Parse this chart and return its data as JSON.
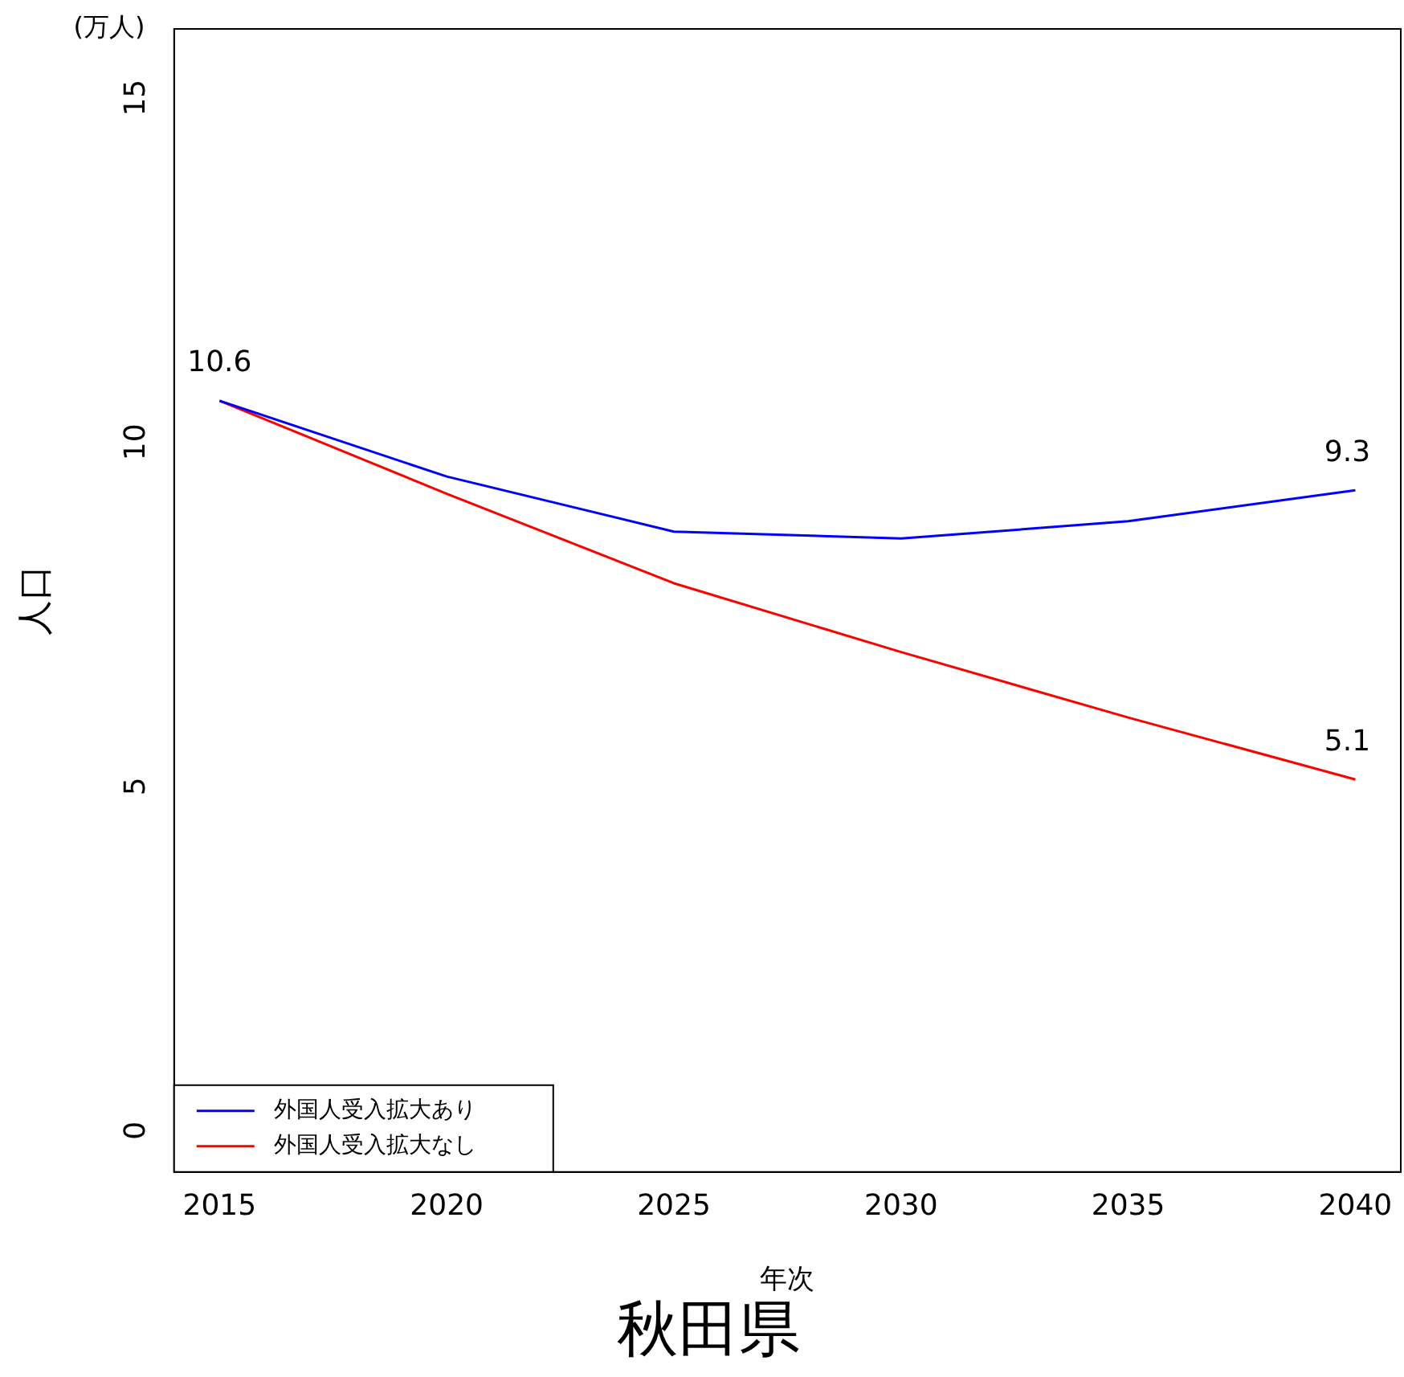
{
  "chart_data": {
    "type": "line",
    "title": "秋田県",
    "xlabel": "年次",
    "ylabel": "人口",
    "annotations": [
      "(万人)"
    ],
    "x": [
      2015,
      2020,
      2025,
      2030,
      2035,
      2040
    ],
    "series": [
      {
        "name": "外国人受入拡大あり",
        "color": "#0000ff",
        "values": [
          10.6,
          9.5,
          8.7,
          8.6,
          8.85,
          9.3
        ],
        "value_labels": [
          "10.6",
          null,
          null,
          null,
          null,
          "9.3"
        ]
      },
      {
        "name": "外国人受入拡大なし",
        "color": "#ff0000",
        "values": [
          10.6,
          9.25,
          7.95,
          6.95,
          6.0,
          5.1
        ],
        "value_labels": [
          null,
          null,
          null,
          null,
          null,
          "5.1"
        ]
      }
    ],
    "xlim": [
      2014,
      2041
    ],
    "xticks": [
      2015,
      2020,
      2025,
      2030,
      2035,
      2040
    ],
    "ylim": [
      -0.6,
      16
    ],
    "yticks": [
      0,
      5,
      10,
      15
    ],
    "grid": false,
    "legend": "bottom left",
    "marker": "none",
    "line_style": "solid"
  }
}
